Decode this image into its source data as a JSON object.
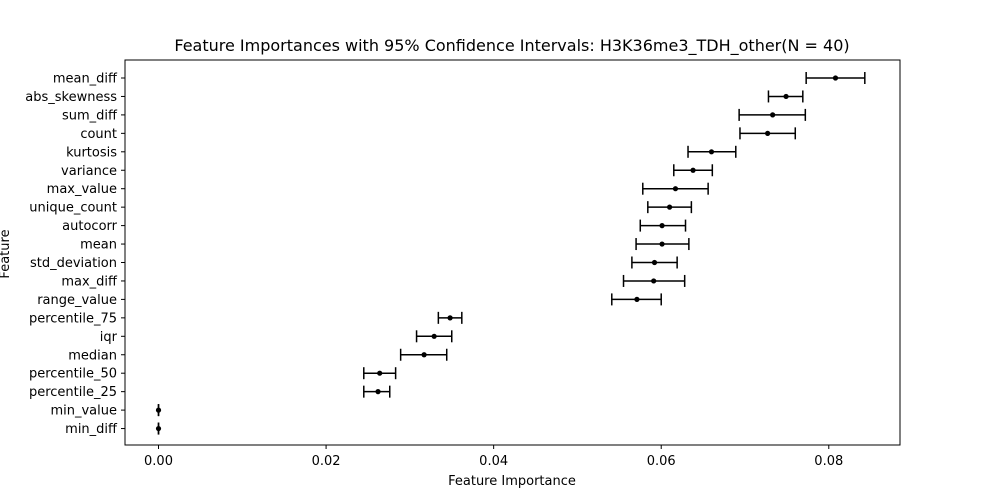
{
  "chart_data": {
    "type": "scatter",
    "title": "Feature Importances with 95% Confidence Intervals: H3K36me3_TDH_other(N = 40)",
    "xlabel": "Feature Importance",
    "ylabel": "Feature",
    "xlim": [
      -0.004,
      0.0885
    ],
    "grid": false,
    "legend": "none",
    "x_ticks": [
      0.0,
      0.02,
      0.04,
      0.06,
      0.08
    ],
    "x_tick_labels": [
      "0.00",
      "0.02",
      "0.04",
      "0.06",
      "0.08"
    ],
    "series": [
      {
        "color": "#000000",
        "points": [
          {
            "feature": "mean_diff",
            "value": 0.0808,
            "ci_low": 0.0773,
            "ci_high": 0.0843
          },
          {
            "feature": "abs_skewness",
            "value": 0.0749,
            "ci_low": 0.0728,
            "ci_high": 0.0769
          },
          {
            "feature": "sum_diff",
            "value": 0.0733,
            "ci_low": 0.0693,
            "ci_high": 0.0772
          },
          {
            "feature": "count",
            "value": 0.0727,
            "ci_low": 0.0694,
            "ci_high": 0.076
          },
          {
            "feature": "kurtosis",
            "value": 0.066,
            "ci_low": 0.0632,
            "ci_high": 0.0689
          },
          {
            "feature": "variance",
            "value": 0.0638,
            "ci_low": 0.0615,
            "ci_high": 0.0661
          },
          {
            "feature": "max_value",
            "value": 0.0617,
            "ci_low": 0.0578,
            "ci_high": 0.0656
          },
          {
            "feature": "unique_count",
            "value": 0.061,
            "ci_low": 0.0584,
            "ci_high": 0.0636
          },
          {
            "feature": "autocorr",
            "value": 0.0601,
            "ci_low": 0.0575,
            "ci_high": 0.0629
          },
          {
            "feature": "mean",
            "value": 0.0601,
            "ci_low": 0.057,
            "ci_high": 0.0633
          },
          {
            "feature": "std_deviation",
            "value": 0.0592,
            "ci_low": 0.0565,
            "ci_high": 0.0619
          },
          {
            "feature": "max_diff",
            "value": 0.0591,
            "ci_low": 0.0555,
            "ci_high": 0.0628
          },
          {
            "feature": "range_value",
            "value": 0.0571,
            "ci_low": 0.0541,
            "ci_high": 0.06
          },
          {
            "feature": "percentile_75",
            "value": 0.0348,
            "ci_low": 0.0334,
            "ci_high": 0.0362
          },
          {
            "feature": "iqr",
            "value": 0.0329,
            "ci_low": 0.0308,
            "ci_high": 0.035
          },
          {
            "feature": "median",
            "value": 0.0317,
            "ci_low": 0.0289,
            "ci_high": 0.0344
          },
          {
            "feature": "percentile_50",
            "value": 0.0264,
            "ci_low": 0.0245,
            "ci_high": 0.0283
          },
          {
            "feature": "percentile_25",
            "value": 0.0262,
            "ci_low": 0.0245,
            "ci_high": 0.0276
          },
          {
            "feature": "min_value",
            "value": 0.0,
            "ci_low": 0.0,
            "ci_high": 0.0
          },
          {
            "feature": "min_diff",
            "value": 0.0,
            "ci_low": 0.0,
            "ci_high": 0.0
          }
        ]
      }
    ]
  }
}
